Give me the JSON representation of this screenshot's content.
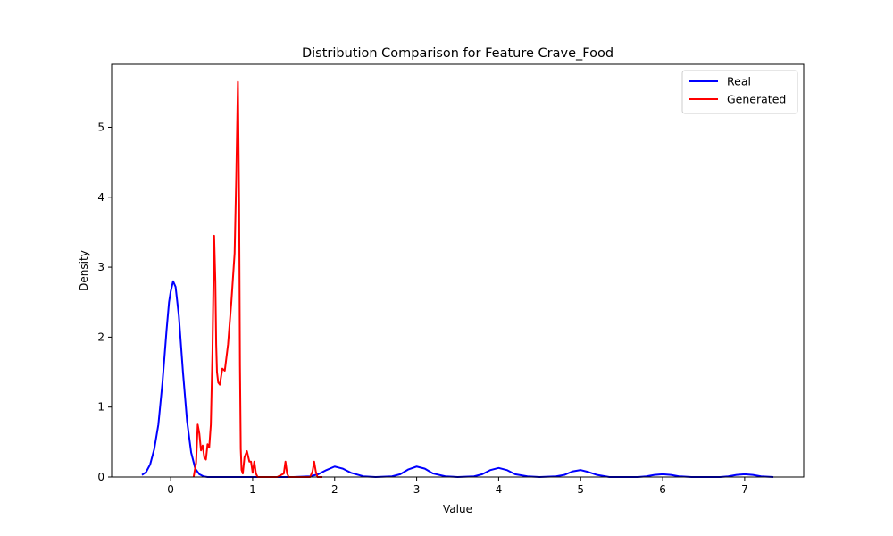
{
  "chart_data": {
    "type": "line",
    "title": "Distribution Comparison for Feature Crave_Food",
    "xlabel": "Value",
    "ylabel": "Density",
    "xlim": [
      -0.72,
      7.72
    ],
    "ylim": [
      0,
      5.9
    ],
    "xticks": [
      0,
      1,
      2,
      3,
      4,
      5,
      6,
      7
    ],
    "yticks": [
      0,
      1,
      2,
      3,
      4,
      5
    ],
    "grid": false,
    "legend_position": "top-right",
    "series": [
      {
        "name": "Real",
        "color": "#0000ff",
        "x": [
          -0.35,
          -0.3,
          -0.25,
          -0.2,
          -0.15,
          -0.1,
          -0.05,
          -0.02,
          0.0,
          0.03,
          0.06,
          0.1,
          0.15,
          0.2,
          0.25,
          0.3,
          0.35,
          0.4,
          0.45,
          0.5,
          0.6,
          0.8,
          1.0,
          1.2,
          1.5,
          1.7,
          1.8,
          1.9,
          2.0,
          2.1,
          2.2,
          2.35,
          2.5,
          2.7,
          2.8,
          2.9,
          3.0,
          3.1,
          3.2,
          3.35,
          3.5,
          3.7,
          3.8,
          3.9,
          4.0,
          4.1,
          4.2,
          4.35,
          4.5,
          4.7,
          4.8,
          4.9,
          5.0,
          5.1,
          5.2,
          5.35,
          5.5,
          5.7,
          5.8,
          5.9,
          6.0,
          6.1,
          6.2,
          6.35,
          6.5,
          6.7,
          6.8,
          6.9,
          7.0,
          7.1,
          7.2,
          7.35
        ],
        "y": [
          0.03,
          0.07,
          0.18,
          0.4,
          0.75,
          1.35,
          2.1,
          2.5,
          2.65,
          2.8,
          2.72,
          2.3,
          1.5,
          0.8,
          0.35,
          0.12,
          0.04,
          0.01,
          0.0,
          0.0,
          0.0,
          0.0,
          0.0,
          0.0,
          0.0,
          0.01,
          0.04,
          0.1,
          0.15,
          0.12,
          0.06,
          0.01,
          0.0,
          0.01,
          0.04,
          0.11,
          0.15,
          0.12,
          0.05,
          0.01,
          0.0,
          0.01,
          0.04,
          0.1,
          0.13,
          0.1,
          0.04,
          0.01,
          0.0,
          0.01,
          0.03,
          0.08,
          0.1,
          0.07,
          0.03,
          0.0,
          0.0,
          0.0,
          0.01,
          0.03,
          0.04,
          0.03,
          0.01,
          0.0,
          0.0,
          0.0,
          0.01,
          0.03,
          0.04,
          0.03,
          0.01,
          0.0
        ]
      },
      {
        "name": "Generated",
        "color": "#ff0000",
        "x": [
          0.28,
          0.31,
          0.33,
          0.35,
          0.37,
          0.39,
          0.41,
          0.43,
          0.45,
          0.47,
          0.49,
          0.51,
          0.53,
          0.545,
          0.555,
          0.565,
          0.58,
          0.6,
          0.63,
          0.66,
          0.7,
          0.74,
          0.78,
          0.8,
          0.82,
          0.835,
          0.845,
          0.855,
          0.865,
          0.88,
          0.9,
          0.93,
          0.96,
          0.98,
          1.0,
          1.02,
          1.04,
          1.06,
          1.08,
          1.1,
          1.15,
          1.3,
          1.38,
          1.4,
          1.42,
          1.44,
          1.46,
          1.55,
          1.7,
          1.73,
          1.75,
          1.77,
          1.79,
          1.85
        ],
        "y": [
          0.0,
          0.2,
          0.75,
          0.62,
          0.38,
          0.45,
          0.28,
          0.25,
          0.47,
          0.42,
          0.75,
          1.8,
          3.45,
          2.8,
          1.9,
          1.5,
          1.35,
          1.32,
          1.55,
          1.52,
          1.9,
          2.5,
          3.2,
          4.3,
          5.65,
          3.9,
          1.6,
          0.4,
          0.1,
          0.05,
          0.28,
          0.37,
          0.22,
          0.22,
          0.06,
          0.22,
          0.05,
          0.0,
          0.0,
          0.0,
          0.0,
          0.0,
          0.05,
          0.22,
          0.05,
          0.0,
          0.0,
          0.0,
          0.0,
          0.08,
          0.22,
          0.08,
          0.0,
          0.0
        ]
      }
    ]
  }
}
